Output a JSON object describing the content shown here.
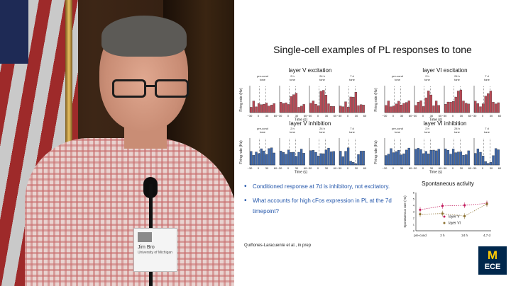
{
  "slide": {
    "title": "Single-cell examples of PL responses to tone",
    "ylabel_rate": "Firing rate (Hz)",
    "xlabel_time": "Time (s)",
    "tone_label": "tone",
    "panels": [
      {
        "title": "layer V excitation",
        "color": "#b94a56",
        "profile": "exc"
      },
      {
        "title": "layer VI excitation",
        "color": "#b94a56",
        "profile": "exc"
      },
      {
        "title": "layer V inhibition",
        "color": "#3f67a8",
        "profile": "inh"
      },
      {
        "title": "layer VI inhibition",
        "color": "#3f67a8",
        "profile": "inh"
      }
    ],
    "epochs": [
      "pre-cond",
      "2 h",
      "24 h",
      "7 d"
    ],
    "time_ticks": [
      "−30",
      "0",
      "30",
      "60"
    ],
    "bullets": [
      "Conditioned response at 7d is inhibitory, not excitatory.",
      "What accounts for high cFos expression in PL at the 7d timepoint?"
    ],
    "citation": "Quiñones-Laracuente et al., in prep",
    "spontaneous": {
      "title": "Spontaneous activity",
      "ylabel": "Spontaneous rate (Hz)",
      "categories": [
        "pre-cond",
        "2 h",
        "24 h",
        "4,7 d"
      ],
      "yticks": [
        "0",
        "1",
        "2",
        "3",
        "4",
        "5",
        "6"
      ],
      "series": [
        {
          "name": "layer V",
          "color": "#c2185b",
          "values": [
            3.3,
            3.9,
            4.0,
            4.3
          ]
        },
        {
          "name": "layer VI",
          "color": "#8b6f2e",
          "values": [
            2.6,
            2.7,
            2.3,
            4.2
          ]
        }
      ],
      "ylim": [
        0,
        6
      ]
    }
  },
  "video": {
    "badge_name": "Jim Bro",
    "badge_title": "University of Michigan"
  },
  "logo": {
    "m": "M",
    "ece": "ECE"
  }
}
